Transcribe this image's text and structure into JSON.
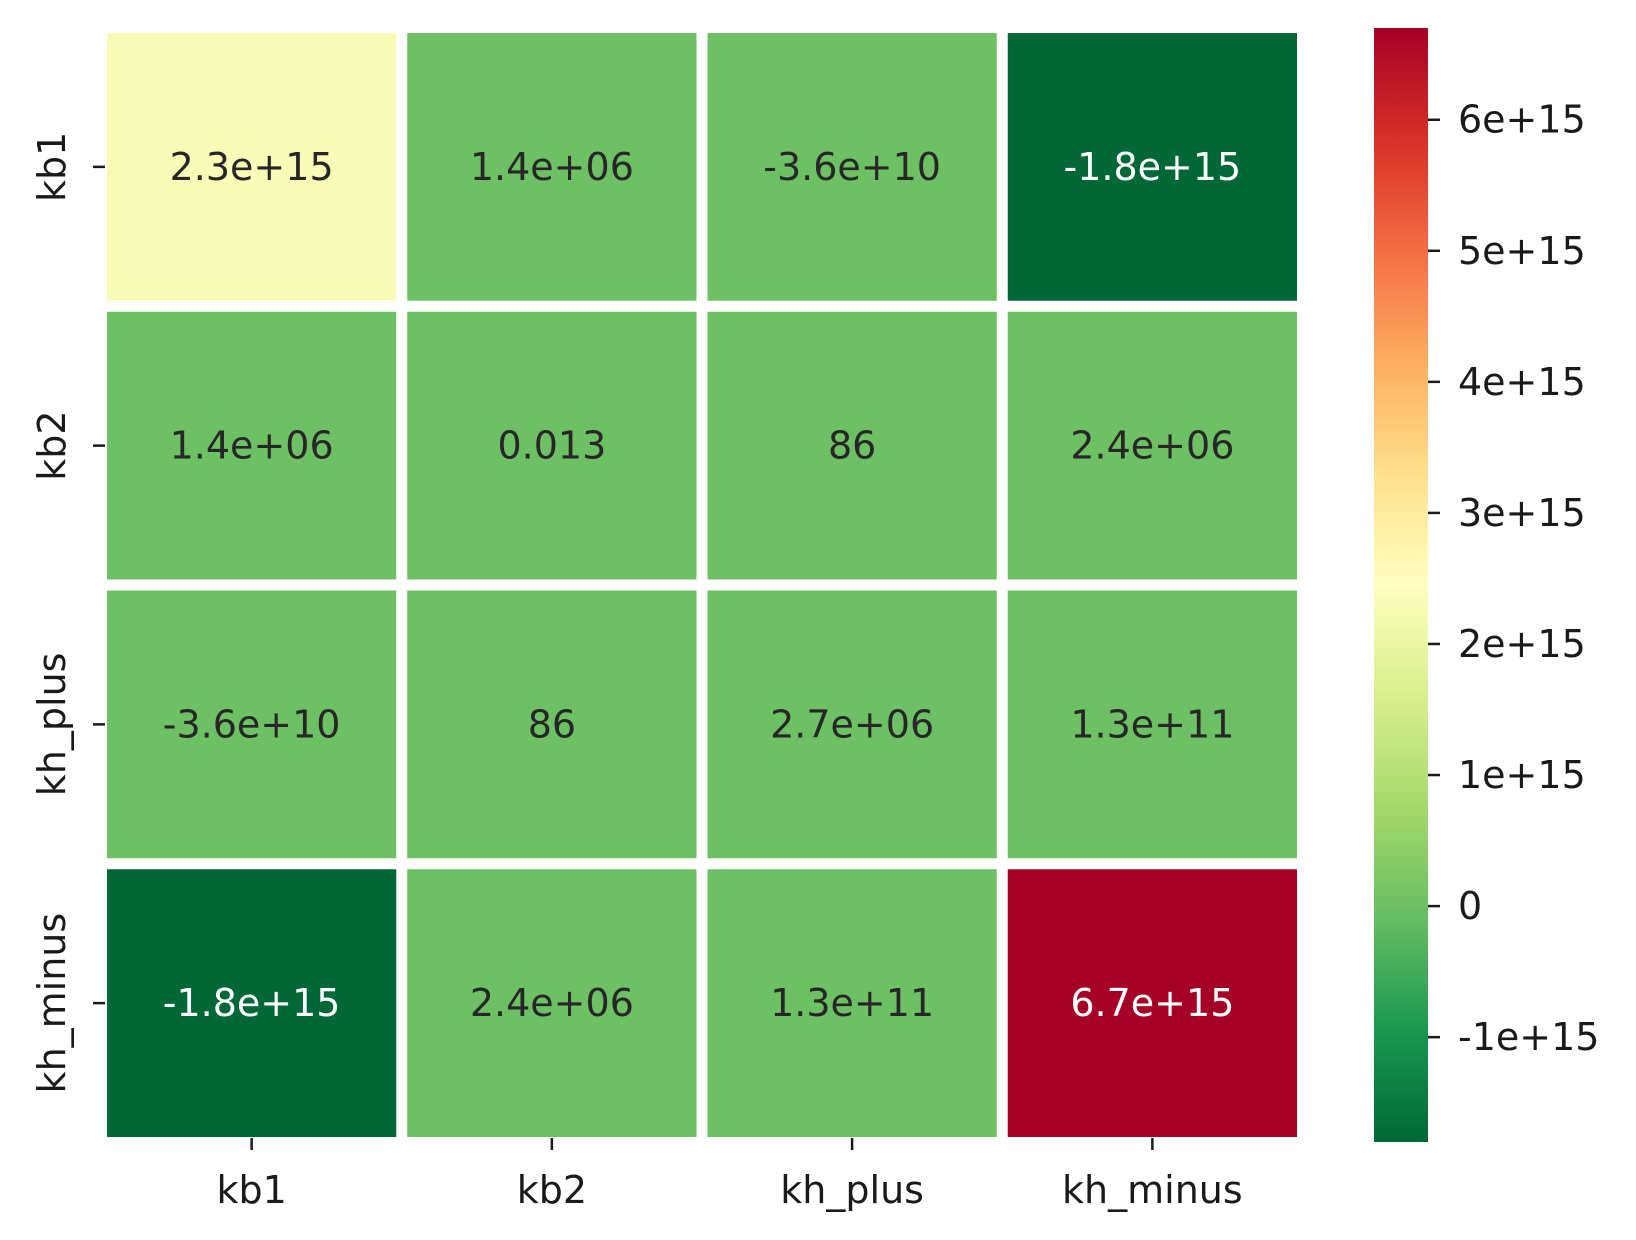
{
  "chart_data": {
    "type": "heatmap",
    "title": "",
    "xlabel": "",
    "ylabel": "",
    "x_categories": [
      "kb1",
      "kb2",
      "kh_plus",
      "kh_minus"
    ],
    "y_categories": [
      "kb1",
      "kb2",
      "kh_plus",
      "kh_minus"
    ],
    "values": [
      [
        2300000000000000.0,
        1400000.0,
        -36000000000.0,
        -1800000000000000.0
      ],
      [
        1400000.0,
        0.013,
        86,
        2400000.0
      ],
      [
        -36000000000.0,
        86,
        2700000.0,
        130000000000.0
      ],
      [
        -1800000000000000.0,
        2400000.0,
        130000000000.0,
        6700000000000000.0
      ]
    ],
    "annotations": [
      [
        "2.3e+15",
        "1.4e+06",
        "-3.6e+10",
        "-1.8e+15"
      ],
      [
        "1.4e+06",
        "0.013",
        "86",
        "2.4e+06"
      ],
      [
        "-3.6e+10",
        "86",
        "2.7e+06",
        "1.3e+11"
      ],
      [
        "-1.8e+15",
        "2.4e+06",
        "1.3e+11",
        "6.7e+15"
      ]
    ],
    "colormap": "RdYlGn_r",
    "colormap_stops": [
      "#006837",
      "#1a9850",
      "#66bd63",
      "#a6d96a",
      "#d9ef8b",
      "#ffffbf",
      "#fee08b",
      "#fdae61",
      "#f46d43",
      "#d73027",
      "#a50026"
    ],
    "vmin": -1800000000000000.0,
    "vmax": 6700000000000000.0,
    "colorbar": {
      "ticks": [
        -1000000000000000.0,
        0,
        1000000000000000.0,
        2000000000000000.0,
        3000000000000000.0,
        4000000000000000.0,
        5000000000000000.0,
        6000000000000000.0
      ],
      "tick_labels": [
        "-1e+15",
        "0",
        "1e+15",
        "2e+15",
        "3e+15",
        "4e+15",
        "5e+15",
        "6e+15"
      ]
    },
    "grid": false,
    "cell_separator_color": "#ffffff"
  }
}
